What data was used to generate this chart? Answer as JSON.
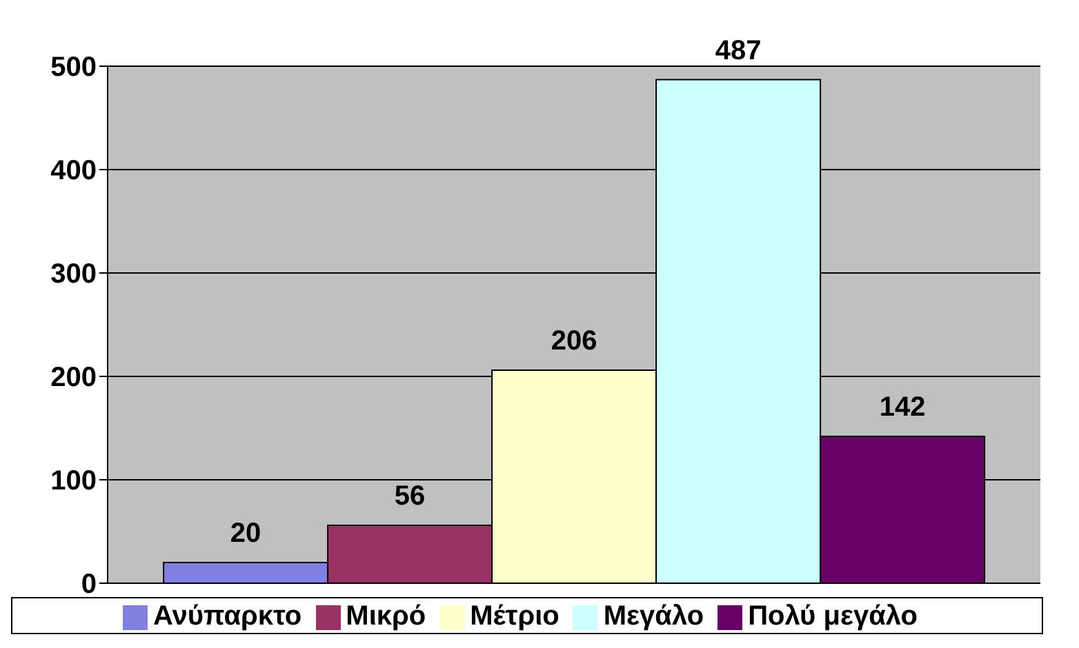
{
  "chart_data": {
    "type": "bar",
    "categories": [
      null
    ],
    "series": [
      {
        "name": "Ανύπαρκτο",
        "color": "#8080e0",
        "values": [
          20
        ]
      },
      {
        "name": "Μικρό",
        "color": "#993366",
        "values": [
          56
        ]
      },
      {
        "name": "Μέτριο",
        "color": "#ffffcc",
        "values": [
          206
        ]
      },
      {
        "name": "Μεγάλο",
        "color": "#ccffff",
        "values": [
          487
        ]
      },
      {
        "name": "Πολύ μεγάλο",
        "color": "#660066",
        "values": [
          142
        ]
      }
    ],
    "ylim": [
      0,
      500
    ],
    "yticks": [
      0,
      100,
      200,
      300,
      400,
      500
    ],
    "grid": "y",
    "legend": "bottom",
    "data_labels": true
  }
}
